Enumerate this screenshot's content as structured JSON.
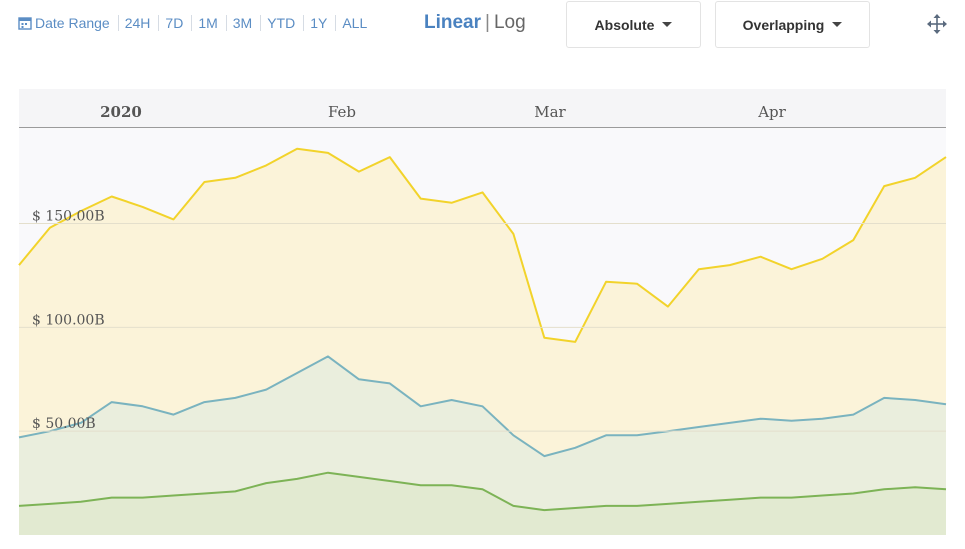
{
  "toolbar": {
    "date_range_label": "Date Range",
    "ranges": [
      "24H",
      "7D",
      "1M",
      "3M",
      "YTD",
      "1Y",
      "ALL"
    ],
    "scale_linear": "Linear",
    "scale_sep": "|",
    "scale_log": "Log",
    "mode_dropdown": "Absolute",
    "layout_dropdown": "Overlapping",
    "icons": [
      "calendar-icon",
      "caret-down-icon",
      "move-arrows-icon"
    ]
  },
  "chart_data": {
    "type": "area",
    "x_axis": {
      "tick_labels": [
        "2020",
        "Feb",
        "Mar",
        "Apr"
      ]
    },
    "y_axis": {
      "tick_labels": [
        "$ 150.00B",
        "$ 100.00B",
        "$ 50.00B"
      ],
      "ticks": [
        150,
        100,
        50
      ],
      "ylim": [
        0,
        196
      ]
    },
    "x": [
      "Jan 1",
      "Jan 5",
      "Jan 9",
      "Jan 13",
      "Jan 17",
      "Jan 21",
      "Jan 25",
      "Jan 29",
      "Feb 2",
      "Feb 6",
      "Feb 10",
      "Feb 14",
      "Feb 18",
      "Feb 22",
      "Feb 26",
      "Mar 1",
      "Mar 5",
      "Mar 9",
      "Mar 13",
      "Mar 17",
      "Mar 21",
      "Mar 25",
      "Mar 29",
      "Apr 2",
      "Apr 6",
      "Apr 10",
      "Apr 14",
      "Apr 18",
      "Apr 22",
      "Apr 26",
      "Apr 30"
    ],
    "series": [
      {
        "color": "#f2d32b",
        "fill": "#fbf3d9",
        "values": [
          130,
          148,
          156,
          163,
          158,
          152,
          170,
          172,
          178,
          186,
          184,
          175,
          182,
          162,
          160,
          165,
          145,
          95,
          93,
          122,
          121,
          110,
          128,
          130,
          134,
          128,
          133,
          142,
          168,
          172,
          182
        ]
      },
      {
        "color": "#7ab3bf",
        "fill": "#eaeedd",
        "values": [
          47,
          50,
          54,
          64,
          62,
          58,
          64,
          66,
          70,
          78,
          86,
          75,
          73,
          62,
          65,
          62,
          48,
          38,
          42,
          48,
          48,
          50,
          52,
          54,
          56,
          55,
          56,
          58,
          66,
          65,
          63
        ]
      },
      {
        "color": "#7db356",
        "fill": "#e2ead1",
        "values": [
          14,
          15,
          16,
          18,
          18,
          19,
          20,
          21,
          25,
          27,
          30,
          28,
          26,
          24,
          24,
          22,
          14,
          12,
          13,
          14,
          14,
          15,
          16,
          17,
          18,
          18,
          19,
          20,
          22,
          23,
          22
        ]
      }
    ]
  }
}
